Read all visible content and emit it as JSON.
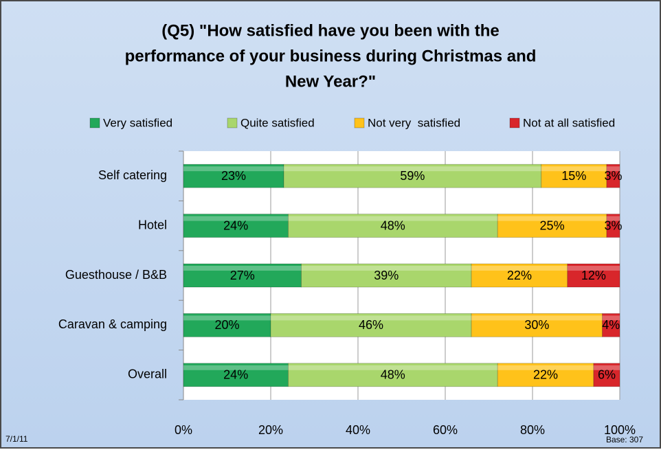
{
  "chart_data": {
    "type": "stacked_bar_horizontal",
    "title": [
      "(Q5) \"How satisfied have you been with the",
      "performance of your business during Christmas and",
      "New Year?\""
    ],
    "categories": [
      "Self catering",
      "Hotel",
      "Guesthouse / B&B",
      "Caravan & camping",
      "Overall"
    ],
    "series": [
      {
        "name": "Very satisfied",
        "color": "#22a85a",
        "values": [
          23,
          24,
          27,
          20,
          24
        ],
        "value_labels": [
          "23%",
          "24%",
          "27%",
          "20%",
          "24%"
        ]
      },
      {
        "name": "Quite satisfied",
        "color": "#a9d66c",
        "values": [
          59,
          48,
          39,
          46,
          48
        ],
        "value_labels": [
          "59%",
          "48%",
          "39%",
          "46%",
          "48%"
        ]
      },
      {
        "name": "Not very  satisfied",
        "color": "#ffc21a",
        "values": [
          15,
          25,
          22,
          30,
          22
        ],
        "value_labels": [
          "15%",
          "25%",
          "22%",
          "30%",
          "22%"
        ]
      },
      {
        "name": "Not at all satisfied",
        "color": "#d8262b",
        "values": [
          3,
          3,
          12,
          4,
          6
        ],
        "value_labels": [
          "3%",
          "3%",
          "12%",
          "4%",
          "6%"
        ]
      }
    ],
    "xlim": [
      0,
      100
    ],
    "xticks": [
      {
        "value": 0,
        "label": "0%"
      },
      {
        "value": 20,
        "label": "20%"
      },
      {
        "value": 40,
        "label": "40%"
      },
      {
        "value": 60,
        "label": "60%"
      },
      {
        "value": 80,
        "label": "80%"
      },
      {
        "value": 100,
        "label": "100%"
      }
    ],
    "grid": true,
    "legend": "top",
    "annotations": [
      "7/1/11",
      "Base: 307"
    ]
  }
}
